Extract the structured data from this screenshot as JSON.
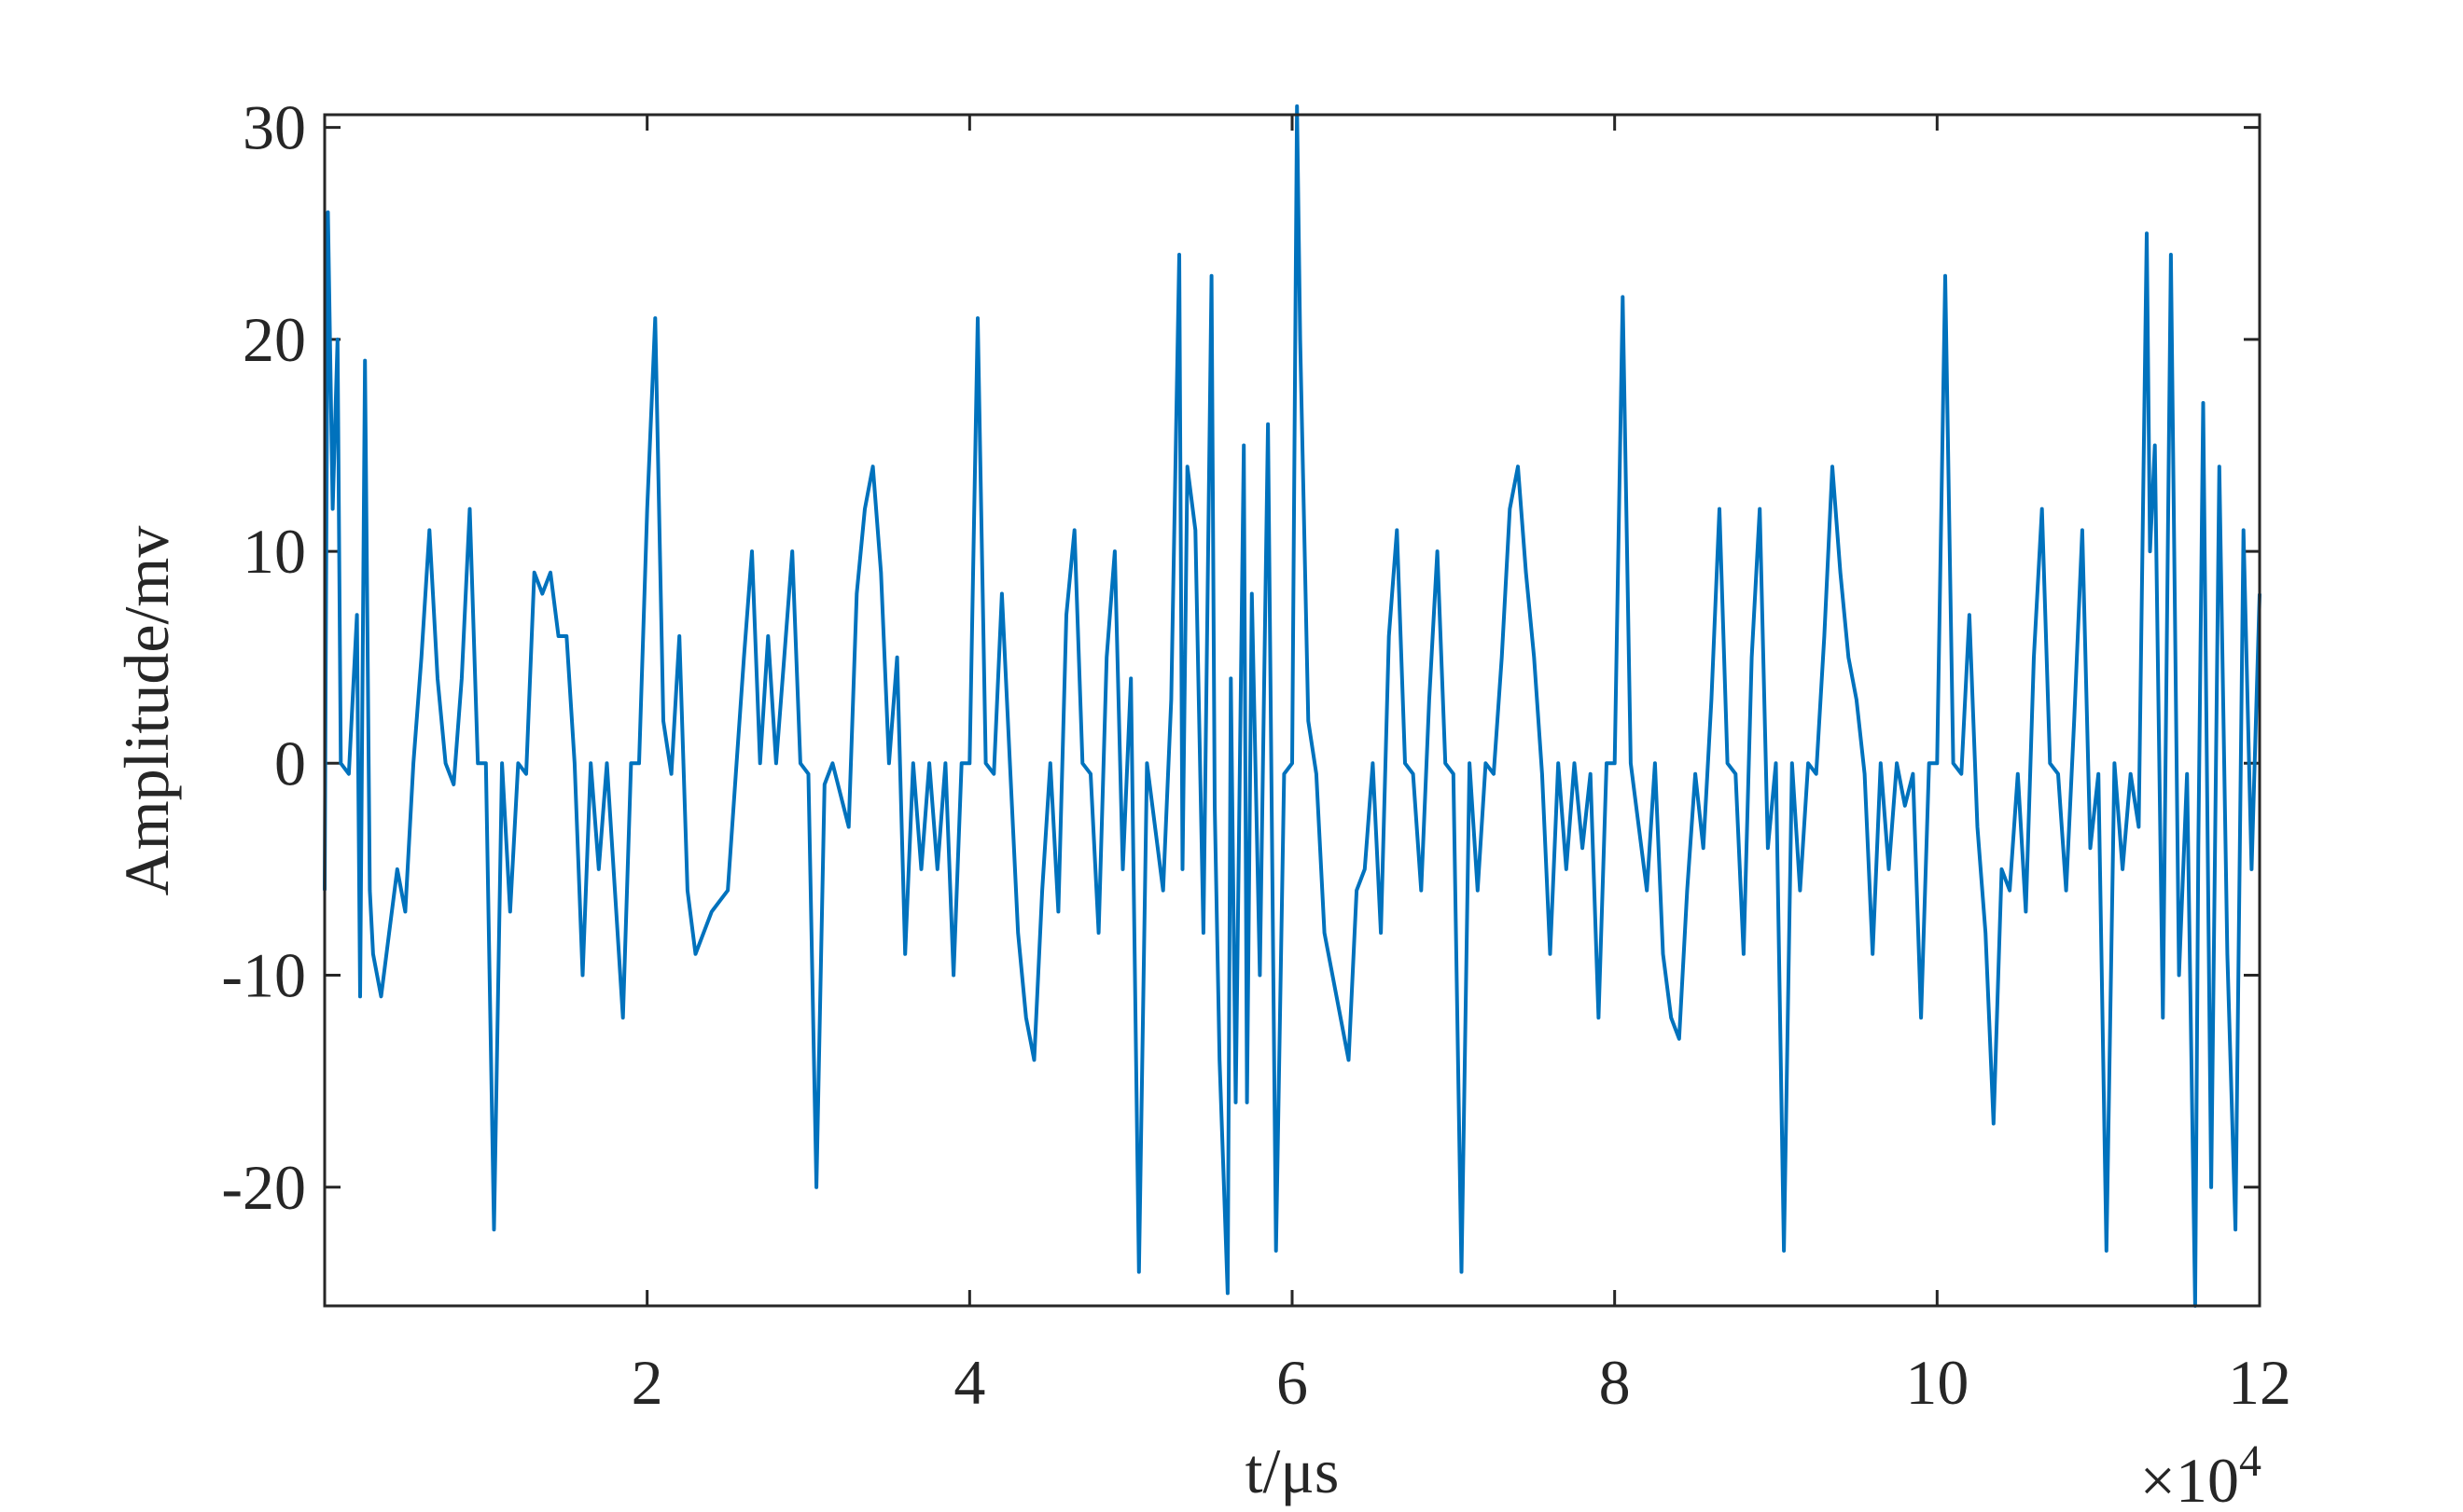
{
  "chart_data": {
    "type": "line",
    "x_label": "t/μs",
    "y_label": "Amplitude/mv",
    "x_multiplier": {
      "base": "×10",
      "exponent": "4"
    },
    "xlim": [
      0,
      12
    ],
    "xticks": [
      2,
      4,
      6,
      8,
      10,
      12
    ],
    "ylim": [
      -25.6,
      30.6
    ],
    "yticks": [
      -20,
      -10,
      0,
      10,
      20,
      30
    ],
    "grid": false,
    "x": [
      0.0,
      0.02,
      0.05,
      0.08,
      0.1,
      0.15,
      0.2,
      0.22,
      0.25,
      0.28,
      0.3,
      0.35,
      0.4,
      0.45,
      0.5,
      0.55,
      0.6,
      0.65,
      0.7,
      0.75,
      0.8,
      0.85,
      0.9,
      0.95,
      1.0,
      1.05,
      1.1,
      1.15,
      1.2,
      1.25,
      1.3,
      1.35,
      1.4,
      1.45,
      1.5,
      1.55,
      1.6,
      1.65,
      1.7,
      1.75,
      1.8,
      1.85,
      1.9,
      1.95,
      2.0,
      2.05,
      2.1,
      2.15,
      2.2,
      2.25,
      2.3,
      2.4,
      2.5,
      2.55,
      2.6,
      2.65,
      2.7,
      2.75,
      2.8,
      2.85,
      2.9,
      2.95,
      3.0,
      3.05,
      3.1,
      3.15,
      3.25,
      3.3,
      3.35,
      3.4,
      3.45,
      3.5,
      3.55,
      3.6,
      3.65,
      3.7,
      3.75,
      3.8,
      3.85,
      3.9,
      3.95,
      4.0,
      4.05,
      4.1,
      4.15,
      4.2,
      4.25,
      4.3,
      4.35,
      4.4,
      4.45,
      4.5,
      4.55,
      4.6,
      4.65,
      4.7,
      4.75,
      4.8,
      4.85,
      4.9,
      4.95,
      5.0,
      5.05,
      5.1,
      5.2,
      5.25,
      5.3,
      5.32,
      5.35,
      5.4,
      5.45,
      5.5,
      5.52,
      5.55,
      5.6,
      5.62,
      5.65,
      5.7,
      5.72,
      5.75,
      5.8,
      5.85,
      5.9,
      5.95,
      6.0,
      6.03,
      6.05,
      6.1,
      6.15,
      6.2,
      6.3,
      6.35,
      6.4,
      6.45,
      6.5,
      6.55,
      6.6,
      6.65,
      6.7,
      6.75,
      6.8,
      6.85,
      6.9,
      6.95,
      7.0,
      7.05,
      7.1,
      7.15,
      7.2,
      7.25,
      7.3,
      7.35,
      7.4,
      7.45,
      7.5,
      7.55,
      7.6,
      7.65,
      7.7,
      7.75,
      7.8,
      7.85,
      7.9,
      7.95,
      8.0,
      8.05,
      8.1,
      8.2,
      8.25,
      8.3,
      8.35,
      8.4,
      8.45,
      8.5,
      8.55,
      8.6,
      8.65,
      8.7,
      8.75,
      8.8,
      8.85,
      8.9,
      8.95,
      9.0,
      9.05,
      9.1,
      9.15,
      9.2,
      9.25,
      9.3,
      9.35,
      9.4,
      9.45,
      9.5,
      9.55,
      9.6,
      9.65,
      9.7,
      9.75,
      9.8,
      9.85,
      9.9,
      9.95,
      10.0,
      10.05,
      10.1,
      10.15,
      10.2,
      10.25,
      10.3,
      10.35,
      10.4,
      10.45,
      10.5,
      10.55,
      10.6,
      10.65,
      10.7,
      10.75,
      10.8,
      10.85,
      10.9,
      10.95,
      11.0,
      11.05,
      11.1,
      11.15,
      11.2,
      11.25,
      11.3,
      11.32,
      11.35,
      11.4,
      11.45,
      11.5,
      11.55,
      11.6,
      11.62,
      11.65,
      11.7,
      11.75,
      11.8,
      11.85,
      11.9,
      11.95,
      12.0
    ],
    "series": [
      {
        "color": "#0072bd",
        "values": [
          -6,
          26,
          12,
          20,
          0,
          -0.5,
          7,
          -11,
          19,
          -6,
          -9,
          -11,
          -8,
          -5,
          -7,
          0,
          5,
          11,
          4,
          0,
          -1,
          4,
          12,
          0,
          0,
          -22,
          0,
          -7,
          0,
          -0.5,
          9,
          8,
          9,
          6,
          6,
          0,
          -10,
          0,
          -5,
          0,
          -6,
          -12,
          0,
          0,
          12,
          21,
          2,
          -0.5,
          6,
          -6,
          -9,
          -7,
          -6,
          -0.5,
          5,
          10,
          0,
          6,
          0,
          5,
          10,
          0,
          -0.5,
          -20,
          -1,
          0,
          -3,
          8,
          12,
          14,
          9,
          0,
          5,
          -9,
          0,
          -5,
          0,
          -5,
          0,
          -10,
          0,
          0,
          21,
          0,
          -0.5,
          8,
          0,
          -8,
          -12,
          -14,
          -6,
          0,
          -7,
          7,
          11,
          0,
          -0.5,
          -8,
          5,
          10,
          -5,
          4,
          -24,
          0,
          -6,
          3,
          24,
          -5,
          14,
          11,
          -8,
          23,
          -2,
          -14,
          -25,
          4,
          -16,
          15,
          -16,
          8,
          -10,
          16,
          -23,
          -0.5,
          0,
          31,
          20,
          2,
          -0.5,
          -8,
          -12,
          -14,
          -6,
          -5,
          0,
          -8,
          6,
          11,
          0,
          -0.5,
          -6,
          3,
          10,
          0,
          -0.5,
          -24,
          0,
          -6,
          0,
          -0.5,
          5,
          12,
          14,
          9,
          5,
          -0.5,
          -9,
          0,
          -5,
          0,
          -4,
          -0.5,
          -12,
          0,
          0,
          22,
          0,
          -6,
          0,
          -9,
          -12,
          -13,
          -6,
          -0.5,
          -4,
          3,
          12,
          0,
          -0.5,
          -9,
          5,
          12,
          -4,
          0,
          -23,
          0,
          -6,
          0,
          -0.5,
          6,
          14,
          9,
          5,
          3,
          -0.5,
          -9,
          0,
          -5,
          0,
          -2,
          -0.5,
          -12,
          0,
          0,
          23,
          0,
          -0.5,
          7,
          -3,
          -8,
          -17,
          -5,
          -6,
          -0.5,
          -7,
          5,
          12,
          0,
          -0.5,
          -6,
          2,
          11,
          -4,
          -0.5,
          -23,
          0,
          -5,
          -0.5,
          -3,
          25,
          10,
          15,
          -12,
          24,
          -10,
          -0.5,
          -25.6,
          -4,
          17,
          -20,
          14,
          -9,
          -22,
          11,
          -5,
          8
        ]
      }
    ]
  }
}
